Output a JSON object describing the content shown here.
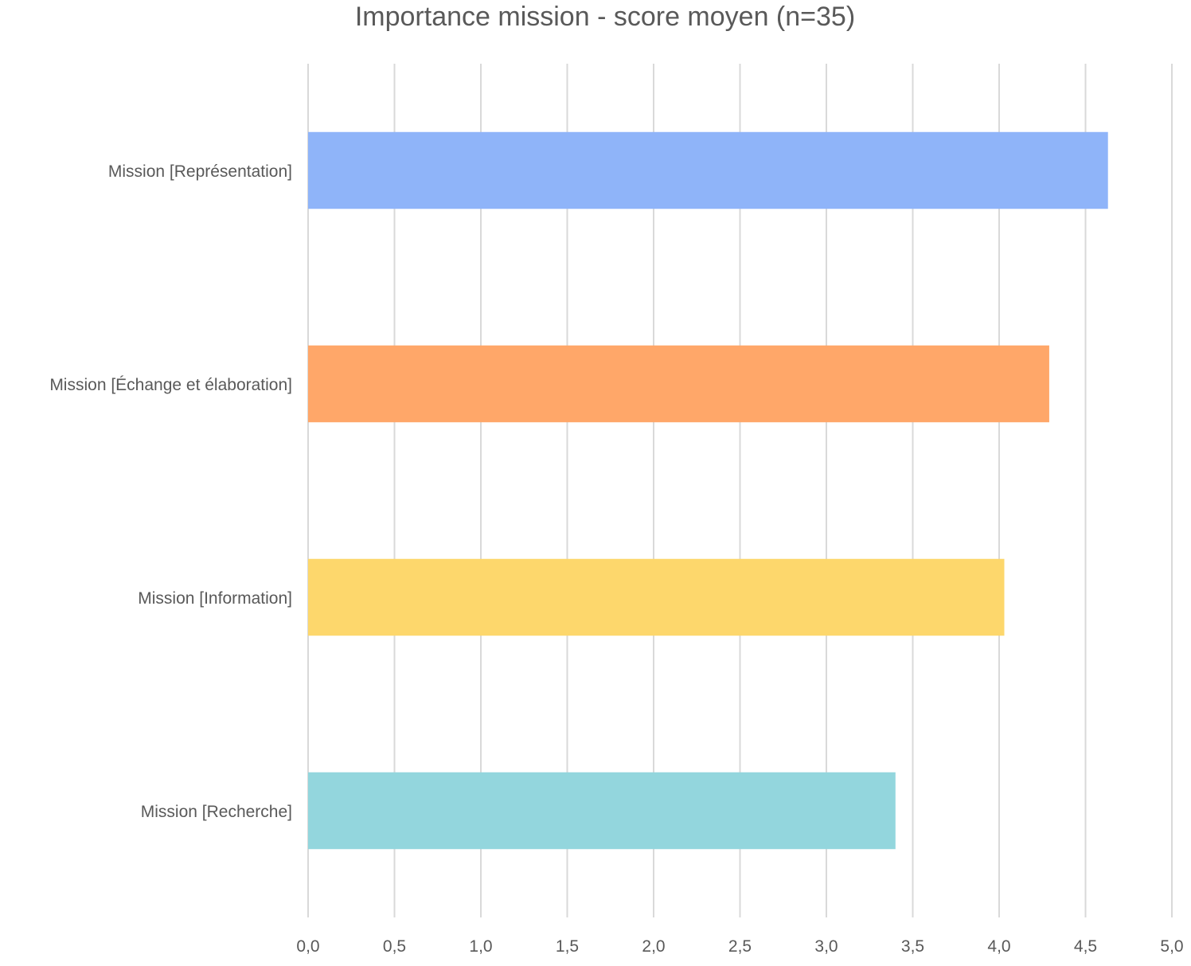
{
  "chart_data": {
    "type": "bar",
    "orientation": "horizontal",
    "title": "Importance mission - score moyen (n=35)",
    "xlabel": "",
    "ylabel": "",
    "xlim": [
      0,
      5
    ],
    "x_ticks": [
      "0,0",
      "0,5",
      "1,0",
      "1,5",
      "2,0",
      "2,5",
      "3,0",
      "3,5",
      "4,0",
      "4,5",
      "5,0"
    ],
    "grid": "vertical",
    "categories": [
      "Mission [Représentation]",
      "Mission [Échange et élaboration]",
      "Mission [Information]",
      "Mission [Recherche]"
    ],
    "values": [
      4.63,
      4.29,
      4.03,
      3.4
    ],
    "colors": [
      "#8fb4f9",
      "#ffa769",
      "#fdd76c",
      "#93d6dd"
    ]
  }
}
